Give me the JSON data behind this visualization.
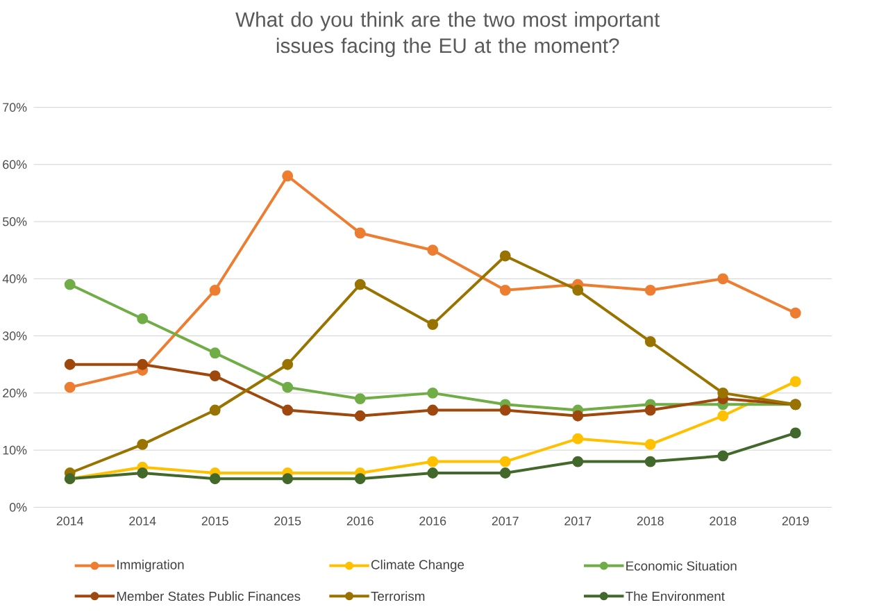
{
  "chart_data": {
    "type": "line",
    "title": "What do you think are the two most important issues facing the EU at the moment?",
    "categories": [
      "2014",
      "2014",
      "2015",
      "2015",
      "2016",
      "2016",
      "2017",
      "2017",
      "2018",
      "2018",
      "2019"
    ],
    "series": [
      {
        "name": "Immigration",
        "color": "#ed7d31",
        "values": [
          21,
          24,
          38,
          58,
          48,
          45,
          38,
          39,
          38,
          40,
          34
        ]
      },
      {
        "name": "Climate Change",
        "color": "#ffc000",
        "values": [
          5,
          7,
          6,
          6,
          6,
          8,
          8,
          12,
          11,
          16,
          22
        ]
      },
      {
        "name": "Economic Situation",
        "color": "#70ad47",
        "values": [
          39,
          33,
          27,
          21,
          19,
          20,
          18,
          17,
          18,
          18,
          18
        ]
      },
      {
        "name": "Member States Public Finances",
        "color": "#9e480e",
        "values": [
          25,
          25,
          23,
          17,
          16,
          17,
          17,
          16,
          17,
          19,
          18
        ]
      },
      {
        "name": "Terrorism",
        "color": "#997300",
        "values": [
          6,
          11,
          17,
          25,
          39,
          32,
          44,
          38,
          29,
          20,
          18
        ]
      },
      {
        "name": "The Environment",
        "color": "#43682b",
        "values": [
          5,
          6,
          5,
          5,
          5,
          6,
          6,
          8,
          8,
          9,
          13
        ]
      }
    ],
    "ylim": [
      0,
      70
    ],
    "yticks": [
      {
        "value": 0,
        "label": "0%"
      },
      {
        "value": 10,
        "label": "10%"
      },
      {
        "value": 20,
        "label": "20%"
      },
      {
        "value": 30,
        "label": "30%"
      },
      {
        "value": 40,
        "label": "40%"
      },
      {
        "value": 50,
        "label": "50%"
      },
      {
        "value": 60,
        "label": "60%"
      },
      {
        "value": 70,
        "label": "70%"
      }
    ],
    "grid": "y",
    "legend": "bottom",
    "marker": "circle",
    "line_style": "solid"
  }
}
